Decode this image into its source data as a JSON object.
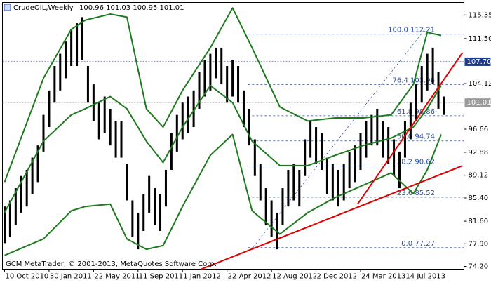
{
  "chart_data": {
    "type": "ohlc",
    "title": "CrudeOIL,Weekly",
    "quote": "100.96 101.03 100.95 101.01",
    "footer": "GCM MetaTrader, © 2001-2013, MetaQuotes Software Corp.",
    "xlim": [
      -0.75,
      165.2
    ],
    "ylim": [
      73.74,
      117.4
    ],
    "grid": false,
    "xticks": [
      {
        "value": 0,
        "label": "10 Oct 2010"
      },
      {
        "value": 16,
        "label": "30 Jan 2011"
      },
      {
        "value": 32,
        "label": "22 May 2011"
      },
      {
        "value": 48,
        "label": "11 Sep 2011"
      },
      {
        "value": 64,
        "label": "1 Jan 2012"
      },
      {
        "value": 80,
        "label": "22 Apr 2012"
      },
      {
        "value": 96,
        "label": "12 Aug 2012"
      },
      {
        "value": 112,
        "label": "2 Dec 2012"
      },
      {
        "value": 128,
        "label": "24 Mar 2013"
      },
      {
        "value": 144,
        "label": "14 Jul 2013"
      }
    ],
    "yticks": [
      115.35,
      {
        "value": 111.5,
        "label": "111.50"
      },
      104.12,
      96.66,
      92.88,
      89.12,
      {
        "value": 85.4,
        "label": "85.40"
      },
      {
        "value": 81.6,
        "label": "81.60"
      },
      {
        "value": 77.9,
        "label": "77.90"
      },
      {
        "value": 74.2,
        "label": "74.20"
      }
    ],
    "price_levels": [
      {
        "value": 107.7,
        "label": "107.70",
        "color": "#1e3c8c"
      },
      {
        "value": 101.01,
        "label": "101.01",
        "color": "#9a9a9a"
      }
    ],
    "bars": {
      "color": "#000000",
      "x": [
        0,
        2,
        4,
        6,
        8,
        10,
        12,
        14,
        16,
        18,
        20,
        22,
        24,
        26,
        28,
        30,
        32,
        34,
        36,
        38,
        40,
        42,
        44,
        46,
        48,
        50,
        52,
        54,
        56,
        58,
        60,
        62,
        64,
        66,
        68,
        70,
        72,
        74,
        76,
        78,
        80,
        82,
        84,
        86,
        88,
        90,
        92,
        94,
        96,
        98,
        100,
        102,
        104,
        106,
        108,
        110,
        112,
        114,
        116,
        118,
        120,
        122,
        124,
        126,
        128,
        130,
        132,
        134,
        136,
        138,
        140,
        142,
        144,
        146,
        148,
        150,
        152,
        154,
        156,
        158
      ],
      "high": [
        84,
        85,
        87,
        89,
        90,
        92,
        94,
        99,
        103,
        107,
        109,
        111,
        113,
        114,
        115,
        107,
        104,
        101,
        102,
        100,
        98,
        98,
        91,
        85,
        83,
        86,
        89,
        87,
        86,
        90,
        96,
        99,
        101,
        102,
        103,
        106,
        108,
        109,
        110,
        110,
        107,
        108,
        107,
        103,
        100,
        95,
        91,
        87,
        85,
        83,
        87,
        90,
        91,
        90,
        95,
        98,
        97,
        96,
        92,
        91,
        90,
        91,
        93,
        94,
        96,
        98,
        99,
        100,
        98,
        97,
        95,
        93,
        98,
        101,
        104,
        107,
        109,
        110,
        106,
        102
      ],
      "low": [
        78,
        79,
        81,
        83,
        84,
        86,
        88,
        93,
        97,
        101,
        103,
        105,
        107,
        107,
        108,
        101,
        98,
        95,
        96,
        94,
        92,
        92,
        85,
        79,
        77,
        80,
        83,
        81,
        80,
        84,
        90,
        93,
        95,
        96,
        97,
        100,
        102,
        103,
        105,
        104,
        101,
        102,
        101,
        97,
        94,
        89,
        85,
        81,
        79,
        77,
        81,
        84,
        85,
        84,
        89,
        92,
        91,
        90,
        86,
        85,
        84,
        85,
        87,
        88,
        90,
        92,
        94,
        94,
        92,
        91,
        89,
        87,
        92,
        95,
        98,
        101,
        103,
        104,
        100,
        99
      ]
    },
    "bands": {
      "color": "#1f7a1f",
      "x": [
        0,
        14,
        24,
        29,
        38,
        44,
        51,
        57,
        64,
        74,
        82,
        89,
        99,
        109,
        119,
        129,
        139,
        147,
        152,
        157
      ],
      "upper": [
        88,
        105,
        113,
        114.5,
        115.5,
        115,
        100,
        97,
        103,
        110,
        116.5,
        110,
        100.3,
        98,
        98.5,
        98.5,
        99,
        104,
        112.5,
        112
      ],
      "middle": [
        83,
        94.7,
        99,
        100,
        102,
        100,
        94.7,
        91.2,
        97,
        103.8,
        101,
        94.7,
        90.7,
        90.7,
        92.4,
        94,
        95.2,
        97,
        100,
        103.8
      ],
      "lower": [
        76,
        78.7,
        83.3,
        84,
        84.4,
        78.7,
        77,
        77.6,
        84,
        92.4,
        95.8,
        83.3,
        79.5,
        83,
        85.5,
        87.5,
        89.5,
        86.1,
        90,
        95.8
      ]
    },
    "trendlines": {
      "color": "#e00000",
      "lines": [
        {
          "x": [
            70.7,
            164.7
          ],
          "values": [
            73.74,
            90.68
          ]
        },
        {
          "x": [
            127,
            164.7
          ],
          "values": [
            84.43,
            109.2
          ]
        }
      ]
    },
    "fib": {
      "color": "#2a4fa8",
      "x": [
        89.5,
        151
      ],
      "values": [
        77.4,
        112.9
      ],
      "levels": [
        {
          "ratio": "100.0",
          "price": 112.21
        },
        {
          "ratio": "76.4",
          "price": 103.96
        },
        {
          "ratio": "61.8",
          "price": 98.86
        },
        {
          "ratio": "50.0",
          "price": 94.74
        },
        {
          "ratio": "38.2",
          "price": 90.62
        },
        {
          "ratio": "23.6",
          "price": 85.52
        },
        {
          "ratio": "0.0",
          "price": 77.27
        }
      ]
    }
  }
}
